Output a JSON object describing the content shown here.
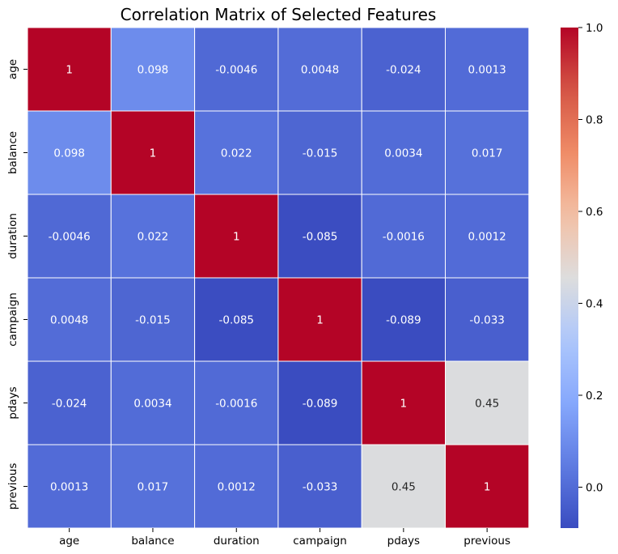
{
  "chart_data": {
    "type": "heatmap",
    "title": "Correlation Matrix of Selected Features",
    "xlabel": "",
    "ylabel": "",
    "x_categories": [
      "age",
      "balance",
      "duration",
      "campaign",
      "pdays",
      "previous"
    ],
    "y_categories": [
      "age",
      "balance",
      "duration",
      "campaign",
      "pdays",
      "previous"
    ],
    "values": [
      [
        1,
        0.098,
        -0.0046,
        0.0048,
        -0.024,
        0.0013
      ],
      [
        0.098,
        1,
        0.022,
        -0.015,
        0.0034,
        0.017
      ],
      [
        -0.0046,
        0.022,
        1,
        -0.085,
        -0.0016,
        0.0012
      ],
      [
        0.0048,
        -0.015,
        -0.085,
        1,
        -0.089,
        -0.033
      ],
      [
        -0.024,
        0.0034,
        -0.0016,
        -0.089,
        1,
        0.45
      ],
      [
        0.0013,
        0.017,
        0.0012,
        -0.033,
        0.45,
        1
      ]
    ],
    "cell_labels": [
      [
        "1",
        "0.098",
        "-0.0046",
        "0.0048",
        "-0.024",
        "0.0013"
      ],
      [
        "0.098",
        "1",
        "0.022",
        "-0.015",
        "0.0034",
        "0.017"
      ],
      [
        "-0.0046",
        "0.022",
        "1",
        "-0.085",
        "-0.0016",
        "0.0012"
      ],
      [
        "0.0048",
        "-0.015",
        "-0.085",
        "1",
        "-0.089",
        "-0.033"
      ],
      [
        "-0.024",
        "0.0034",
        "-0.0016",
        "-0.089",
        "1",
        "0.45"
      ],
      [
        "0.0013",
        "0.017",
        "0.0012",
        "-0.033",
        "0.45",
        "1"
      ]
    ],
    "colormap": "coolwarm",
    "vmin": -0.089,
    "vmax": 1.0,
    "colorbar_ticks": [
      0.0,
      0.2,
      0.4,
      0.6,
      0.8,
      1.0
    ],
    "colorbar_tick_labels": [
      "0.0",
      "0.2",
      "0.4",
      "0.6",
      "0.8",
      "1.0"
    ],
    "colors": {
      "cell_border": "#ffffff",
      "label_light": "#ffffff",
      "label_dark": "#262626"
    },
    "grid": false,
    "legend": "colorbar-right"
  }
}
